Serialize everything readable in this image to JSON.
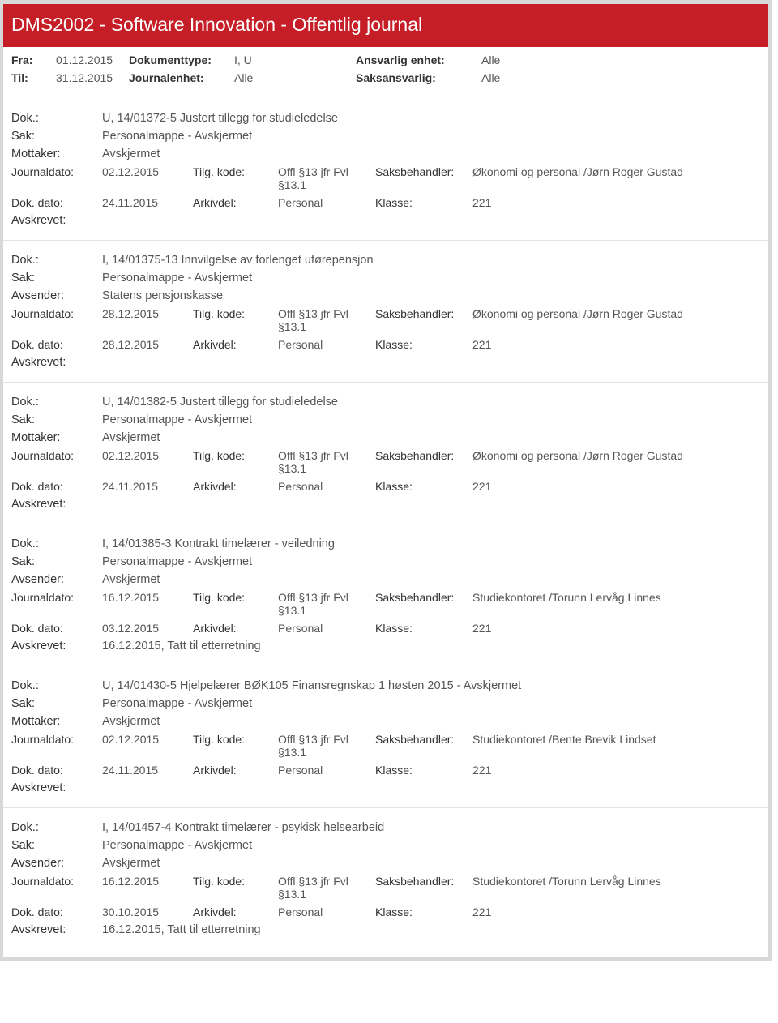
{
  "header_title": "DMS2002 - Software Innovation - Offentlig journal",
  "filters": {
    "fra_label": "Fra:",
    "fra_value": "01.12.2015",
    "til_label": "Til:",
    "til_value": "31.12.2015",
    "doktype_label": "Dokumenttype:",
    "doktype_value": "I, U",
    "journalenhet_label": "Journalenhet:",
    "journalenhet_value": "Alle",
    "ansvarlig_label": "Ansvarlig enhet:",
    "ansvarlig_value": "Alle",
    "saksansvarlig_label": "Saksansvarlig:",
    "saksansvarlig_value": "Alle"
  },
  "labels": {
    "dok": "Dok.:",
    "sak": "Sak:",
    "mottaker": "Mottaker:",
    "avsender": "Avsender:",
    "journaldato": "Journaldato:",
    "dok_dato": "Dok. dato:",
    "tilg_kode": "Tilg. kode:",
    "arkivdel": "Arkivdel:",
    "saksbehandler": "Saksbehandler:",
    "klasse": "Klasse:",
    "avskrevet": "Avskrevet:"
  },
  "entries": [
    {
      "dok": "U, 14/01372-5 Justert tillegg for studieledelse",
      "sak": "Personalmappe - Avskjermet",
      "party_label": "Mottaker:",
      "party": "Avskjermet",
      "journaldato": "02.12.2015",
      "tilg_kode": "Offl §13 jfr Fvl §13.1",
      "saksbehandler": "Økonomi og personal /Jørn Roger Gustad",
      "dok_dato": "24.11.2015",
      "arkivdel": "Personal",
      "klasse": "221",
      "avskrevet": ""
    },
    {
      "dok": "I, 14/01375-13 Innvilgelse av forlenget uførepensjon",
      "sak": "Personalmappe - Avskjermet",
      "party_label": "Avsender:",
      "party": "Statens pensjonskasse",
      "journaldato": "28.12.2015",
      "tilg_kode": "Offl §13 jfr Fvl §13.1",
      "saksbehandler": "Økonomi og personal /Jørn Roger Gustad",
      "dok_dato": "28.12.2015",
      "arkivdel": "Personal",
      "klasse": "221",
      "avskrevet": ""
    },
    {
      "dok": "U, 14/01382-5 Justert tillegg for studieledelse",
      "sak": "Personalmappe - Avskjermet",
      "party_label": "Mottaker:",
      "party": "Avskjermet",
      "journaldato": "02.12.2015",
      "tilg_kode": "Offl §13 jfr Fvl §13.1",
      "saksbehandler": "Økonomi og personal /Jørn Roger Gustad",
      "dok_dato": "24.11.2015",
      "arkivdel": "Personal",
      "klasse": "221",
      "avskrevet": ""
    },
    {
      "dok": "I, 14/01385-3 Kontrakt timelærer - veiledning",
      "sak": "Personalmappe - Avskjermet",
      "party_label": "Avsender:",
      "party": "Avskjermet",
      "journaldato": "16.12.2015",
      "tilg_kode": "Offl §13 jfr Fvl §13.1",
      "saksbehandler": "Studiekontoret /Torunn Lervåg Linnes",
      "dok_dato": "03.12.2015",
      "arkivdel": "Personal",
      "klasse": "221",
      "avskrevet": "16.12.2015, Tatt til etterretning"
    },
    {
      "dok": "U, 14/01430-5 Hjelpelærer BØK105 Finansregnskap 1 høsten 2015 - Avskjermet",
      "sak": "Personalmappe - Avskjermet",
      "party_label": "Mottaker:",
      "party": "Avskjermet",
      "journaldato": "02.12.2015",
      "tilg_kode": "Offl §13 jfr Fvl §13.1",
      "saksbehandler": "Studiekontoret /Bente Brevik Lindset",
      "dok_dato": "24.11.2015",
      "arkivdel": "Personal",
      "klasse": "221",
      "avskrevet": ""
    },
    {
      "dok": "I, 14/01457-4 Kontrakt timelærer - psykisk helsearbeid",
      "sak": "Personalmappe - Avskjermet",
      "party_label": "Avsender:",
      "party": "Avskjermet",
      "journaldato": "16.12.2015",
      "tilg_kode": "Offl §13 jfr Fvl §13.1",
      "saksbehandler": "Studiekontoret /Torunn Lervåg Linnes",
      "dok_dato": "30.10.2015",
      "arkivdel": "Personal",
      "klasse": "221",
      "avskrevet": "16.12.2015, Tatt til etterretning"
    }
  ]
}
